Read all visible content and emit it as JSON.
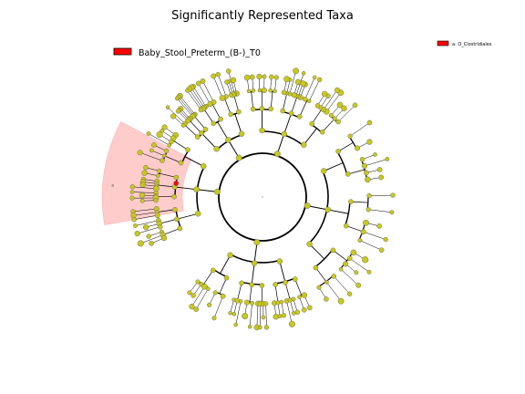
{
  "figure": {
    "title": "Significantly Represented Taxa",
    "legend_main": {
      "label": "Baby_Stool_Preterm_(B-)_T0",
      "color": "#ff0000"
    },
    "legend_small": {
      "label": "a: O_Clostridiales",
      "color": "#ff0000"
    },
    "highlight_label": "a",
    "highlight_color": "#ffcccc",
    "node_color": "#c8c81e",
    "significant_node_color": "#ff0000"
  }
}
